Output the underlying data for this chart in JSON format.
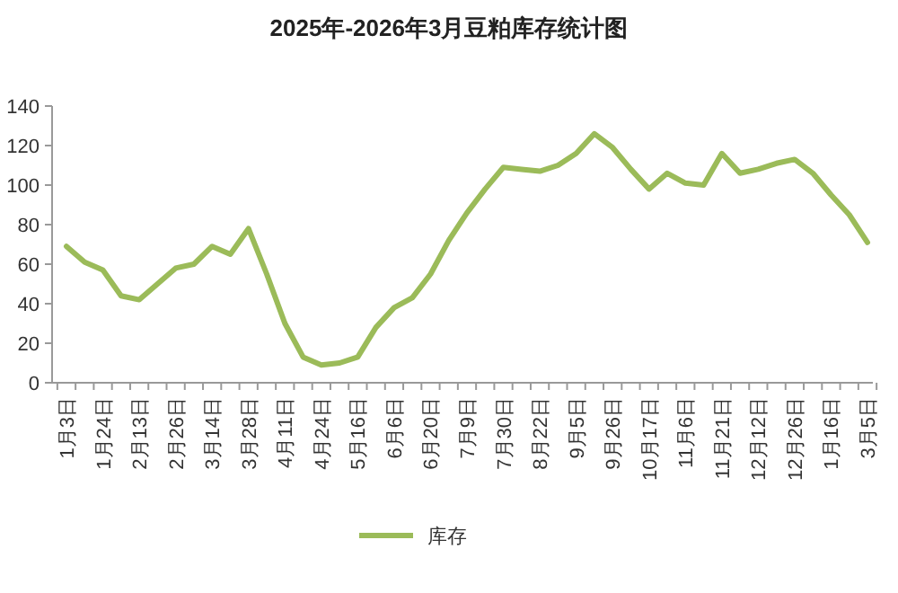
{
  "chart_data": {
    "type": "line",
    "title": "2025年-2026年3月豆粕库存统计图",
    "categories": [
      "1月3日",
      null,
      "1月24日",
      null,
      "2月13日",
      null,
      "2月26日",
      null,
      "3月14日",
      null,
      "3月28日",
      null,
      "4月11日",
      null,
      "4月24日",
      null,
      "5月16日",
      null,
      "6月6日",
      null,
      "6月20日",
      null,
      "7月9日",
      null,
      "7月30日",
      null,
      "8月22日",
      null,
      "9月5日",
      null,
      "9月26日",
      null,
      "10月17日",
      null,
      "11月6日",
      null,
      "11月21日",
      null,
      "12月12日",
      null,
      "12月26日",
      null,
      "1月16日",
      null,
      "3月5日"
    ],
    "series": [
      {
        "name": "库存",
        "color": "#9bbb59",
        "values": [
          69,
          61,
          57,
          44,
          42,
          50,
          58,
          60,
          69,
          65,
          78,
          55,
          30,
          13,
          9,
          10,
          13,
          28,
          38,
          43,
          55,
          72,
          86,
          98,
          109,
          108,
          107,
          110,
          116,
          126,
          119,
          108,
          98,
          106,
          101,
          100,
          116,
          106,
          108,
          111,
          113,
          106,
          95,
          85,
          71
        ]
      }
    ],
    "ylim": [
      0,
      140
    ],
    "yticks": [
      0,
      20,
      40,
      60,
      80,
      100,
      120,
      140
    ],
    "legend": "bottom"
  }
}
